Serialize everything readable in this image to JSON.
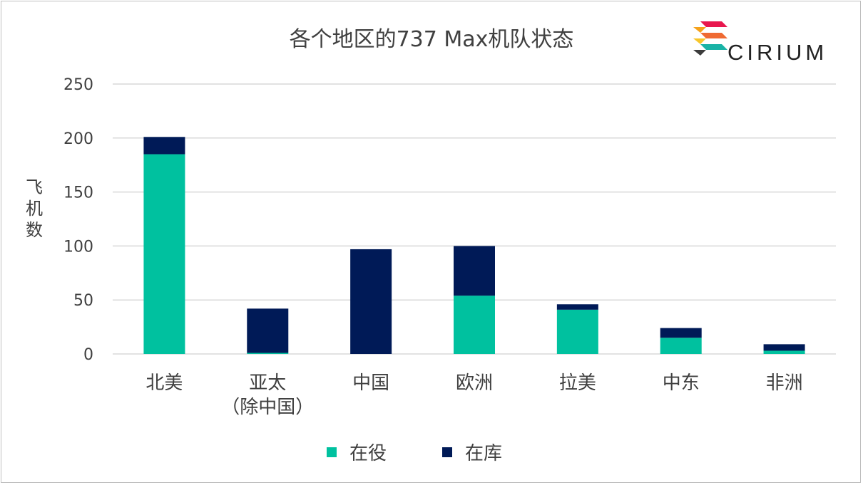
{
  "logo": {
    "text": "CIRIUM"
  },
  "colors": {
    "in_service": "#00c19f",
    "stored": "#001a57",
    "grid": "#d9d9d9",
    "text": "#404040"
  },
  "chart_data": {
    "type": "bar",
    "stacked": true,
    "title": "各个地区的737 Max机队状态",
    "xlabel": "",
    "ylabel": "飞机数",
    "ylim": [
      0,
      250
    ],
    "yticks": [
      0,
      50,
      100,
      150,
      200,
      250
    ],
    "grid": true,
    "legend_position": "bottom",
    "categories": [
      [
        "北美"
      ],
      [
        "亚太",
        "（除中国）"
      ],
      [
        "中国"
      ],
      [
        "欧洲"
      ],
      [
        "拉美"
      ],
      [
        "中东"
      ],
      [
        "非洲"
      ]
    ],
    "series": [
      {
        "name": "在役",
        "color": "#00c19f",
        "values": [
          185,
          1,
          0,
          54,
          41,
          15,
          3
        ]
      },
      {
        "name": "在库",
        "color": "#001a57",
        "values": [
          16,
          41,
          97,
          46,
          5,
          9,
          6
        ]
      }
    ]
  }
}
